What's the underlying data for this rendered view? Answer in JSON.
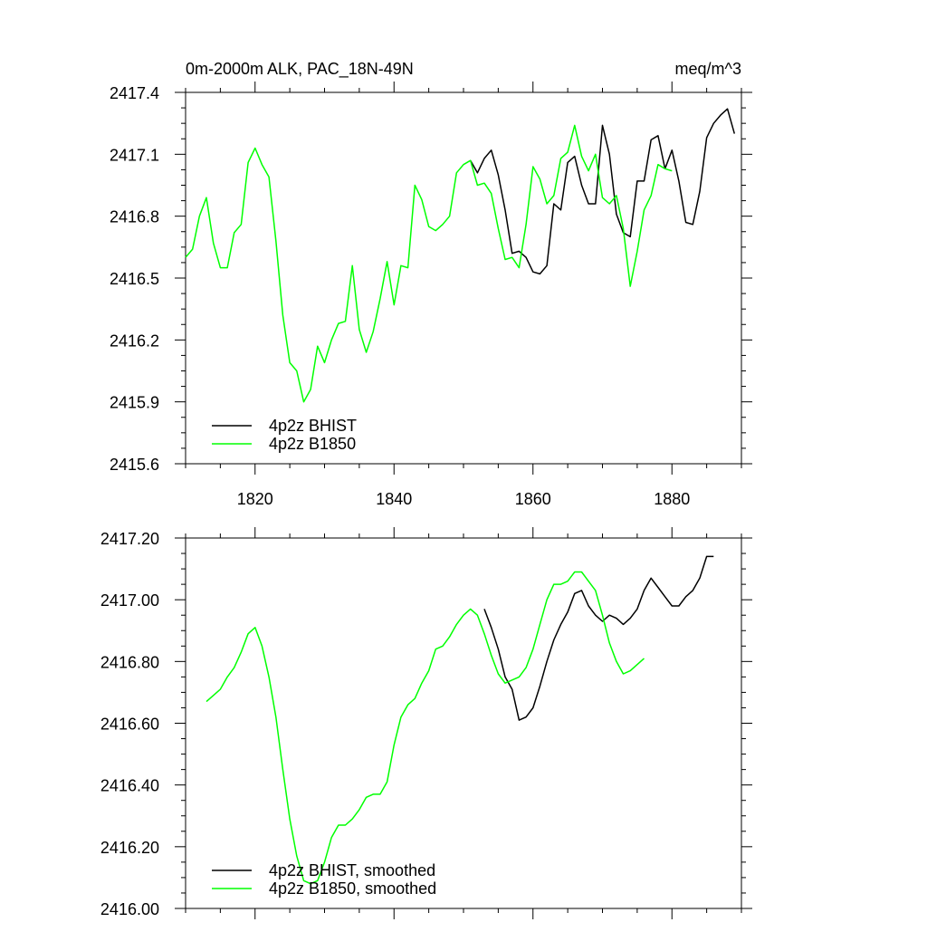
{
  "chart_data": [
    {
      "type": "line",
      "title": "0m-2000m ALK, PAC_18N-49N",
      "units": "meq/m^3",
      "xlabel": "",
      "ylabel": "",
      "xlim": [
        1810,
        1890
      ],
      "ylim": [
        2415.6,
        2417.4
      ],
      "x_ticks": [
        1820,
        1840,
        1860,
        1880
      ],
      "x_tick_labels": [
        "1820",
        "1840",
        "1860",
        "1880"
      ],
      "y_ticks": [
        2415.6,
        2415.9,
        2416.2,
        2416.5,
        2416.8,
        2417.1,
        2417.4
      ],
      "y_tick_labels": [
        "2415.6",
        "2415.9",
        "2416.2",
        "2416.5",
        "2416.8",
        "2417.1",
        "2417.4"
      ],
      "legend_position": "bottom-left",
      "series": [
        {
          "name": "4p2z BHIST",
          "color": "#000000",
          "x": [
            1851,
            1852,
            1853,
            1854,
            1855,
            1856,
            1857,
            1858,
            1859,
            1860,
            1861,
            1862,
            1863,
            1864,
            1865,
            1866,
            1867,
            1868,
            1869,
            1870,
            1871,
            1872,
            1873,
            1874,
            1875,
            1876,
            1877,
            1878,
            1879,
            1880,
            1881,
            1882,
            1883,
            1884,
            1885,
            1886,
            1887,
            1888,
            1889
          ],
          "y": [
            2417.07,
            2417.01,
            2417.08,
            2417.12,
            2417.0,
            2416.83,
            2416.62,
            2416.63,
            2416.6,
            2416.53,
            2416.52,
            2416.56,
            2416.86,
            2416.83,
            2417.06,
            2417.09,
            2416.95,
            2416.86,
            2416.86,
            2417.24,
            2417.1,
            2416.81,
            2416.72,
            2416.7,
            2416.97,
            2416.97,
            2417.17,
            2417.19,
            2417.03,
            2417.12,
            2416.97,
            2416.77,
            2416.76,
            2416.92,
            2417.18,
            2417.25,
            2417.29,
            2417.32,
            2417.2
          ]
        },
        {
          "name": "4p2z B1850",
          "color": "#00ff00",
          "x": [
            1810,
            1811,
            1812,
            1813,
            1814,
            1815,
            1816,
            1817,
            1818,
            1819,
            1820,
            1821,
            1822,
            1823,
            1824,
            1825,
            1826,
            1827,
            1828,
            1829,
            1830,
            1831,
            1832,
            1833,
            1834,
            1835,
            1836,
            1837,
            1838,
            1839,
            1840,
            1841,
            1842,
            1843,
            1844,
            1845,
            1846,
            1847,
            1848,
            1849,
            1850,
            1851,
            1852,
            1853,
            1854,
            1855,
            1856,
            1857,
            1858,
            1859,
            1860,
            1861,
            1862,
            1863,
            1864,
            1865,
            1866,
            1867,
            1868,
            1869,
            1870,
            1871,
            1872,
            1873,
            1874,
            1875,
            1876,
            1877,
            1878,
            1879,
            1880
          ],
          "y": [
            2416.6,
            2416.64,
            2416.8,
            2416.89,
            2416.67,
            2416.55,
            2416.55,
            2416.72,
            2416.76,
            2417.06,
            2417.13,
            2417.05,
            2416.99,
            2416.68,
            2416.32,
            2416.09,
            2416.05,
            2415.9,
            2415.96,
            2416.17,
            2416.09,
            2416.2,
            2416.28,
            2416.29,
            2416.56,
            2416.25,
            2416.14,
            2416.24,
            2416.4,
            2416.58,
            2416.37,
            2416.56,
            2416.55,
            2416.95,
            2416.88,
            2416.75,
            2416.73,
            2416.76,
            2416.8,
            2417.01,
            2417.05,
            2417.07,
            2416.95,
            2416.96,
            2416.91,
            2416.74,
            2416.59,
            2416.6,
            2416.55,
            2416.76,
            2417.04,
            2416.98,
            2416.86,
            2416.9,
            2417.08,
            2417.11,
            2417.24,
            2417.09,
            2417.02,
            2417.1,
            2416.89,
            2416.86,
            2416.9,
            2416.74,
            2416.46,
            2416.63,
            2416.83,
            2416.9,
            2417.05,
            2417.03,
            2417.02
          ]
        }
      ]
    },
    {
      "type": "line",
      "title": "",
      "xlabel": "",
      "ylabel": "",
      "xlim": [
        1810,
        1890
      ],
      "ylim": [
        2416.0,
        2417.2
      ],
      "x_ticks": [
        1820,
        1840,
        1860,
        1880
      ],
      "x_tick_labels": [],
      "y_ticks": [
        2416.0,
        2416.2,
        2416.4,
        2416.6,
        2416.8,
        2417.0,
        2417.2
      ],
      "y_tick_labels": [
        "2416.00",
        "2416.20",
        "2416.40",
        "2416.60",
        "2416.80",
        "2417.00",
        "2417.20"
      ],
      "legend_position": "bottom-left",
      "series": [
        {
          "name": "4p2z BHIST, smoothed",
          "color": "#000000",
          "x": [
            1853,
            1854,
            1855,
            1856,
            1857,
            1858,
            1859,
            1860,
            1861,
            1862,
            1863,
            1864,
            1865,
            1866,
            1867,
            1868,
            1869,
            1870,
            1871,
            1872,
            1873,
            1874,
            1875,
            1876,
            1877,
            1878,
            1879,
            1880,
            1881,
            1882,
            1883,
            1884,
            1885,
            1886
          ],
          "y": [
            2416.97,
            2416.91,
            2416.84,
            2416.75,
            2416.71,
            2416.61,
            2416.62,
            2416.65,
            2416.72,
            2416.8,
            2416.87,
            2416.92,
            2416.96,
            2417.02,
            2417.03,
            2416.98,
            2416.95,
            2416.93,
            2416.95,
            2416.94,
            2416.92,
            2416.94,
            2416.97,
            2417.03,
            2417.07,
            2417.04,
            2417.01,
            2416.98,
            2416.98,
            2417.01,
            2417.03,
            2417.07,
            2417.14,
            2417.14
          ]
        },
        {
          "name": "4p2z B1850, smoothed",
          "color": "#00ff00",
          "x": [
            1813,
            1814,
            1815,
            1816,
            1817,
            1818,
            1819,
            1820,
            1821,
            1822,
            1823,
            1824,
            1825,
            1826,
            1827,
            1828,
            1829,
            1830,
            1831,
            1832,
            1833,
            1834,
            1835,
            1836,
            1837,
            1838,
            1839,
            1840,
            1841,
            1842,
            1843,
            1844,
            1845,
            1846,
            1847,
            1848,
            1849,
            1850,
            1851,
            1852,
            1853,
            1854,
            1855,
            1856,
            1857,
            1858,
            1859,
            1860,
            1861,
            1862,
            1863,
            1864,
            1865,
            1866,
            1867,
            1868,
            1869,
            1870,
            1871,
            1872,
            1873,
            1874,
            1875,
            1876
          ],
          "y": [
            2416.67,
            2416.69,
            2416.71,
            2416.75,
            2416.78,
            2416.83,
            2416.89,
            2416.91,
            2416.85,
            2416.75,
            2416.62,
            2416.45,
            2416.29,
            2416.17,
            2416.09,
            2416.08,
            2416.09,
            2416.15,
            2416.23,
            2416.27,
            2416.27,
            2416.29,
            2416.32,
            2416.36,
            2416.37,
            2416.37,
            2416.41,
            2416.53,
            2416.62,
            2416.66,
            2416.68,
            2416.73,
            2416.77,
            2416.84,
            2416.85,
            2416.88,
            2416.92,
            2416.95,
            2416.97,
            2416.95,
            2416.89,
            2416.82,
            2416.76,
            2416.73,
            2416.74,
            2416.75,
            2416.78,
            2416.84,
            2416.92,
            2417.0,
            2417.05,
            2417.05,
            2417.06,
            2417.09,
            2417.09,
            2417.06,
            2417.03,
            2416.95,
            2416.86,
            2416.8,
            2416.76,
            2416.77,
            2416.79,
            2416.81
          ]
        }
      ]
    }
  ]
}
